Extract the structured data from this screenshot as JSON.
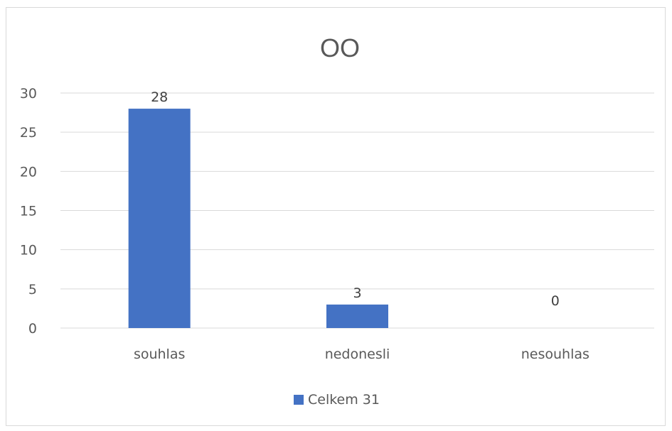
{
  "chart_data": {
    "type": "bar",
    "title": "OO",
    "categories": [
      "souhlas",
      "nedonesli",
      "nesouhlas"
    ],
    "series": [
      {
        "name": "Celkem 31",
        "values": [
          28,
          3,
          0
        ],
        "color": "#4472c4"
      }
    ],
    "data_labels": [
      "28",
      "3",
      "0"
    ],
    "y_ticks": [
      "0",
      "5",
      "10",
      "15",
      "20",
      "25",
      "30"
    ],
    "ylim": [
      0,
      30
    ],
    "grid": true,
    "legend_position": "bottom",
    "gridline_color": "#d9d9d9",
    "text_color": "#595959"
  }
}
